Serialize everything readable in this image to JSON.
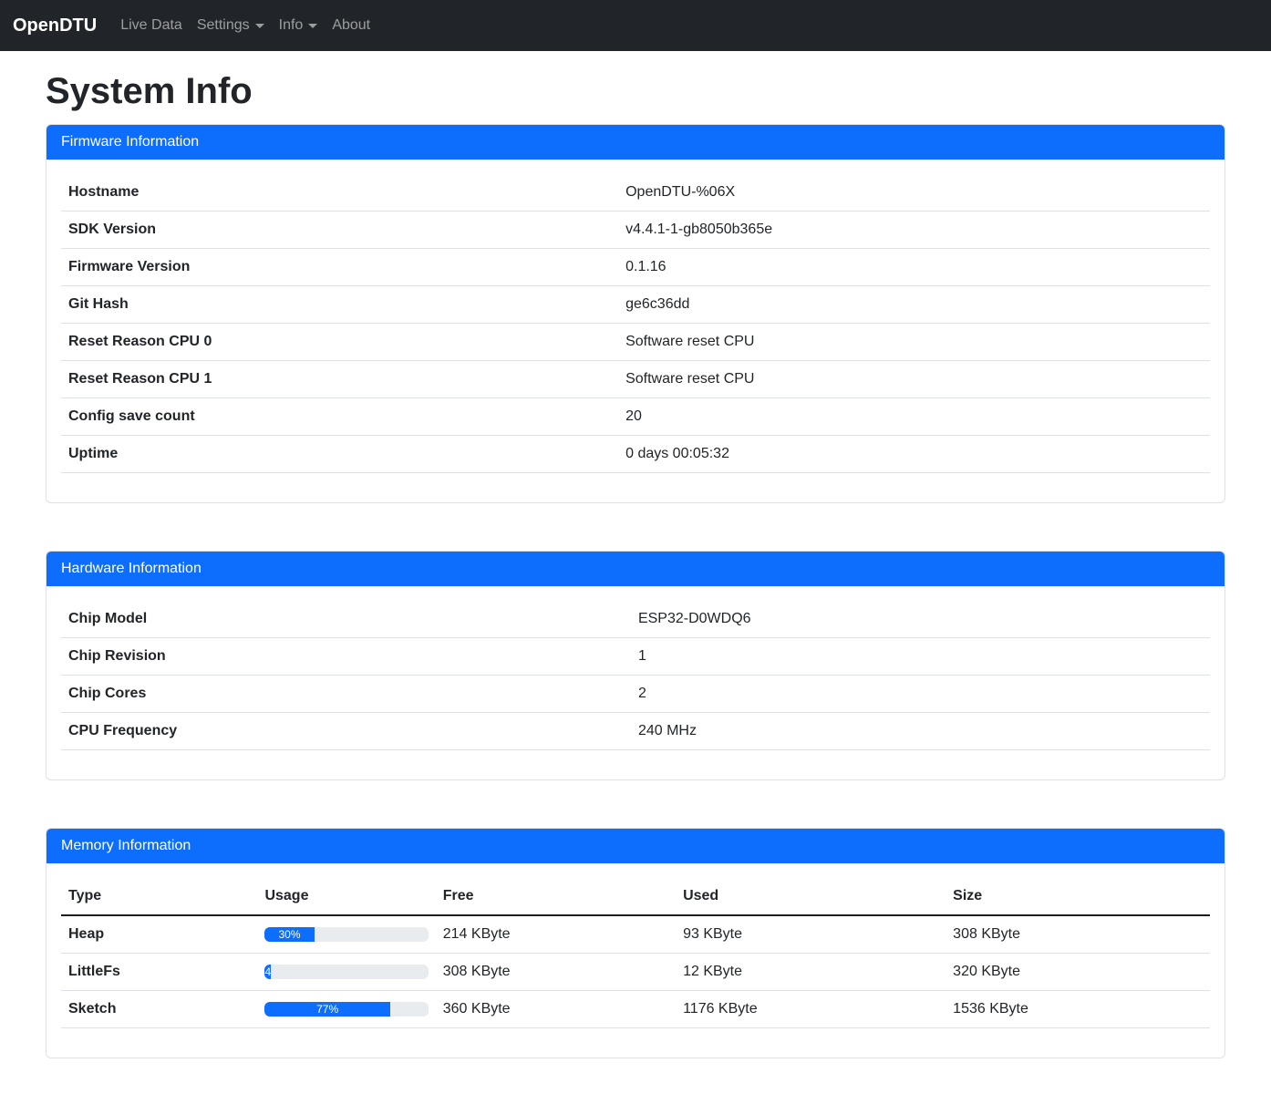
{
  "colors": {
    "primary": "#0d6efd",
    "navbar_bg": "#212529",
    "progress_track": "#e9ecef",
    "card_border": "#dee2e6",
    "text": "#212529"
  },
  "navbar": {
    "brand": "OpenDTU",
    "items": [
      {
        "label": "Live Data",
        "dropdown": false
      },
      {
        "label": "Settings",
        "dropdown": true
      },
      {
        "label": "Info",
        "dropdown": true
      },
      {
        "label": "About",
        "dropdown": false
      }
    ]
  },
  "page": {
    "title": "System Info"
  },
  "cards": {
    "firmware": {
      "title": "Firmware Information",
      "rows": [
        {
          "label": "Hostname",
          "value": "OpenDTU-%06X"
        },
        {
          "label": "SDK Version",
          "value": "v4.4.1-1-gb8050b365e"
        },
        {
          "label": "Firmware Version",
          "value": "0.1.16"
        },
        {
          "label": "Git Hash",
          "value": "ge6c36dd"
        },
        {
          "label": "Reset Reason CPU 0",
          "value": "Software reset CPU"
        },
        {
          "label": "Reset Reason CPU 1",
          "value": "Software reset CPU"
        },
        {
          "label": "Config save count",
          "value": "20"
        },
        {
          "label": "Uptime",
          "value": "0 days 00:05:32"
        }
      ]
    },
    "hardware": {
      "title": "Hardware Information",
      "rows": [
        {
          "label": "Chip Model",
          "value": "ESP32-D0WDQ6"
        },
        {
          "label": "Chip Revision",
          "value": "1"
        },
        {
          "label": "Chip Cores",
          "value": "2"
        },
        {
          "label": "CPU Frequency",
          "value": "240 MHz"
        }
      ]
    },
    "memory": {
      "title": "Memory Information",
      "columns": [
        "Type",
        "Usage",
        "Free",
        "Used",
        "Size"
      ],
      "rows": [
        {
          "type": "Heap",
          "usage_percent": 30.2,
          "usage_label": "30%",
          "free": "214 KByte",
          "used": "93 KByte",
          "size": "308 KByte"
        },
        {
          "type": "LittleFs",
          "usage_percent": 3.75,
          "usage_label": "4",
          "free": "308 KByte",
          "used": "12 KByte",
          "size": "320 KByte"
        },
        {
          "type": "Sketch",
          "usage_percent": 76.6,
          "usage_label": "77%",
          "free": "360 KByte",
          "used": "1176 KByte",
          "size": "1536 KByte"
        }
      ]
    }
  }
}
